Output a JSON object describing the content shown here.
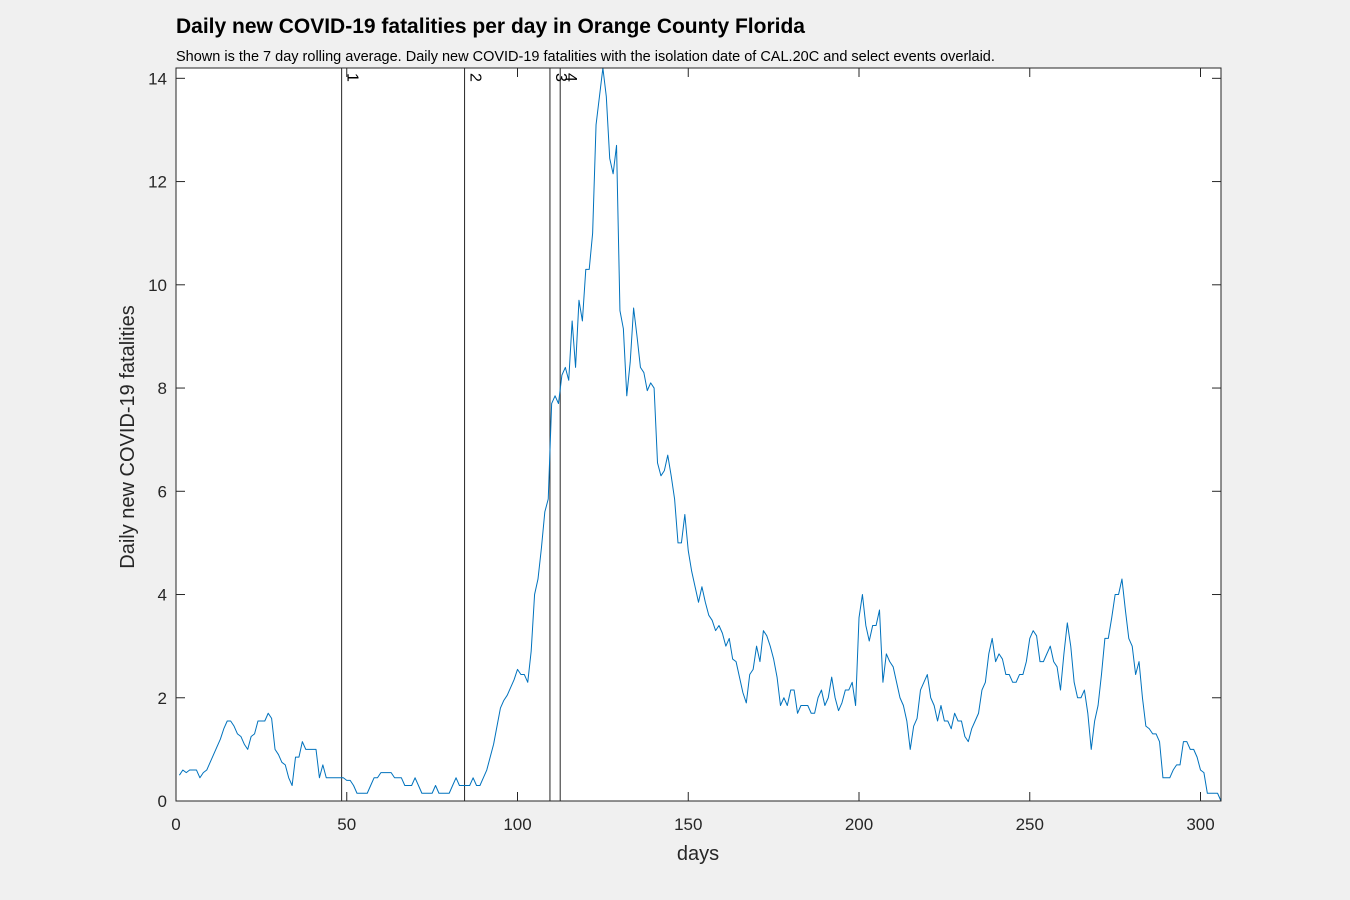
{
  "chart_data": {
    "type": "line",
    "title": "Daily new COVID-19 fatalities per day in Orange County Florida",
    "subtitle": "Shown is the 7 day rolling average. Daily new COVID-19 fatalities with the isolation date of CAL.20C and select events overlaid.",
    "xlabel": "days",
    "ylabel": "Daily new COVID-19 fatalities",
    "xlim": [
      0,
      306
    ],
    "ylim": [
      0,
      14.2
    ],
    "xticks": [
      0,
      50,
      100,
      150,
      200,
      250,
      300
    ],
    "yticks": [
      0,
      2,
      4,
      6,
      8,
      10,
      12,
      14
    ],
    "grid": false,
    "series_color": "#0072bd",
    "events": [
      {
        "label": "1",
        "x": 48.5
      },
      {
        "label": "2",
        "x": 84.5
      },
      {
        "label": "3",
        "x": 109.5
      },
      {
        "label": "4",
        "x": 112.5
      }
    ],
    "series": [
      {
        "x": [
          1,
          2,
          3,
          4,
          5,
          6,
          7,
          8,
          9,
          10,
          11,
          12,
          13,
          14,
          15,
          16,
          17,
          18,
          19,
          20,
          21,
          22,
          23,
          24,
          25,
          26,
          27,
          28,
          29,
          30,
          31,
          32,
          33,
          34,
          35,
          36,
          37,
          38,
          39,
          40,
          41,
          42,
          43,
          44,
          45,
          46,
          47,
          48,
          49,
          50,
          51,
          52,
          53,
          54,
          55,
          56,
          57,
          58,
          59,
          60,
          61,
          62,
          63,
          64,
          65,
          66,
          67,
          68,
          69,
          70,
          71,
          72,
          73,
          74,
          75,
          76,
          77,
          78,
          79,
          80,
          81,
          82,
          83,
          84,
          85,
          86,
          87,
          88,
          89,
          90,
          91,
          92,
          93,
          94,
          95,
          96,
          97,
          98,
          99,
          100,
          101,
          102,
          103,
          104,
          105,
          106,
          107,
          108,
          109,
          110,
          111,
          112,
          113,
          114,
          115,
          116,
          117,
          118,
          119,
          120,
          121,
          122,
          123,
          124,
          125,
          126,
          127,
          128,
          129,
          130,
          131,
          132,
          133,
          134,
          135,
          136,
          137,
          138,
          139,
          140,
          141,
          142,
          143,
          144,
          145,
          146,
          147,
          148,
          149,
          150,
          151,
          152,
          153,
          154,
          155,
          156,
          157,
          158,
          159,
          160,
          161,
          162,
          163,
          164,
          165,
          166,
          167,
          168,
          169,
          170,
          171,
          172,
          173,
          174,
          175,
          176,
          177,
          178,
          179,
          180,
          181,
          182,
          183,
          184,
          185,
          186,
          187,
          188,
          189,
          190,
          191,
          192,
          193,
          194,
          195,
          196,
          197,
          198,
          199,
          200,
          201,
          202,
          203,
          204,
          205,
          206,
          207,
          208,
          209,
          210,
          211,
          212,
          213,
          214,
          215,
          216,
          217,
          218,
          219,
          220,
          221,
          222,
          223,
          224,
          225,
          226,
          227,
          228,
          229,
          230,
          231,
          232,
          233,
          234,
          235,
          236,
          237,
          238,
          239,
          240,
          241,
          242,
          243,
          244,
          245,
          246,
          247,
          248,
          249,
          250,
          251,
          252,
          253,
          254,
          255,
          256,
          257,
          258,
          259,
          260,
          261,
          262,
          263,
          264,
          265,
          266,
          267,
          268,
          269,
          270,
          271,
          272,
          273,
          274,
          275,
          276,
          277,
          278,
          279,
          280,
          281,
          282,
          283,
          284,
          285,
          286,
          287,
          288,
          289,
          290,
          291,
          292,
          293,
          294,
          295,
          296,
          297,
          298,
          299,
          300,
          301,
          302,
          303,
          304,
          305,
          306
        ],
        "values": [
          0.5,
          0.6,
          0.55,
          0.6,
          0.6,
          0.6,
          0.45,
          0.55,
          0.6,
          0.75,
          0.9,
          1.05,
          1.2,
          1.4,
          1.55,
          1.55,
          1.45,
          1.3,
          1.25,
          1.1,
          1.0,
          1.25,
          1.3,
          1.55,
          1.55,
          1.55,
          1.7,
          1.6,
          1.0,
          0.9,
          0.75,
          0.7,
          0.45,
          0.3,
          0.85,
          0.85,
          1.15,
          1.0,
          1.0,
          1.0,
          1.0,
          0.45,
          0.7,
          0.45,
          0.45,
          0.45,
          0.45,
          0.45,
          0.45,
          0.4,
          0.4,
          0.3,
          0.15,
          0.15,
          0.15,
          0.15,
          0.3,
          0.45,
          0.45,
          0.55,
          0.55,
          0.55,
          0.55,
          0.45,
          0.45,
          0.45,
          0.3,
          0.3,
          0.3,
          0.45,
          0.3,
          0.15,
          0.15,
          0.15,
          0.15,
          0.3,
          0.15,
          0.15,
          0.15,
          0.15,
          0.3,
          0.45,
          0.3,
          0.3,
          0.3,
          0.3,
          0.45,
          0.3,
          0.3,
          0.45,
          0.6,
          0.85,
          1.1,
          1.45,
          1.8,
          1.95,
          2.05,
          2.2,
          2.35,
          2.55,
          2.45,
          2.45,
          2.3,
          2.9,
          4.0,
          4.3,
          4.9,
          5.6,
          5.85,
          7.7,
          7.85,
          7.7,
          8.25,
          8.4,
          8.15,
          9.3,
          8.4,
          9.7,
          9.3,
          10.3,
          10.3,
          11.0,
          13.1,
          13.65,
          14.2,
          13.65,
          12.45,
          12.15,
          12.7,
          9.5,
          9.15,
          7.85,
          8.5,
          9.55,
          9.0,
          8.4,
          8.3,
          7.95,
          8.1,
          8.0,
          6.55,
          6.3,
          6.4,
          6.7,
          6.3,
          5.85,
          5.0,
          5.0,
          5.55,
          4.85,
          4.45,
          4.15,
          3.85,
          4.15,
          3.85,
          3.6,
          3.5,
          3.3,
          3.4,
          3.25,
          3.0,
          3.15,
          2.75,
          2.7,
          2.4,
          2.1,
          1.9,
          2.45,
          2.55,
          3.0,
          2.7,
          3.3,
          3.2,
          3.0,
          2.75,
          2.4,
          1.85,
          2.0,
          1.85,
          2.15,
          2.15,
          1.7,
          1.85,
          1.85,
          1.85,
          1.7,
          1.7,
          2.0,
          2.15,
          1.85,
          2.0,
          2.4,
          2.0,
          1.75,
          1.9,
          2.15,
          2.15,
          2.3,
          1.85,
          3.55,
          4.0,
          3.4,
          3.1,
          3.4,
          3.4,
          3.7,
          2.3,
          2.85,
          2.7,
          2.6,
          2.3,
          2.0,
          1.85,
          1.55,
          1.0,
          1.45,
          1.6,
          2.15,
          2.3,
          2.45,
          2.0,
          1.85,
          1.55,
          1.85,
          1.55,
          1.55,
          1.4,
          1.7,
          1.55,
          1.55,
          1.25,
          1.15,
          1.4,
          1.55,
          1.7,
          2.15,
          2.3,
          2.85,
          3.15,
          2.7,
          2.85,
          2.75,
          2.45,
          2.45,
          2.3,
          2.3,
          2.45,
          2.45,
          2.7,
          3.15,
          3.3,
          3.2,
          2.7,
          2.7,
          2.85,
          3.0,
          2.7,
          2.6,
          2.15,
          2.85,
          3.45,
          3.0,
          2.3,
          2.0,
          2.0,
          2.15,
          1.7,
          1.0,
          1.55,
          1.85,
          2.45,
          3.15,
          3.15,
          3.55,
          4.0,
          4.0,
          4.3,
          3.7,
          3.15,
          3.0,
          2.45,
          2.7,
          2.0,
          1.45,
          1.4,
          1.3,
          1.3,
          1.15,
          0.45,
          0.45,
          0.45,
          0.6,
          0.7,
          0.7,
          1.15,
          1.15,
          1.0,
          1.0,
          0.85,
          0.6,
          0.55,
          0.15,
          0.15,
          0.15,
          0.15,
          0.0
        ]
      }
    ]
  }
}
